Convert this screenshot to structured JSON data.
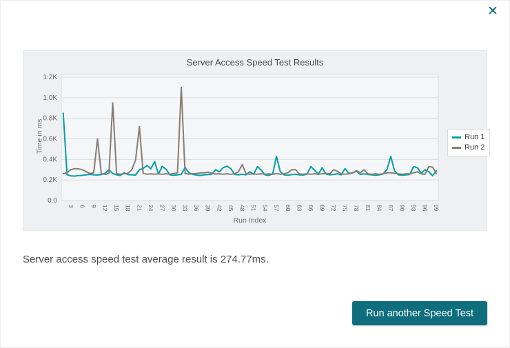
{
  "dialog": {
    "close_icon": "✕",
    "summary_text": "Server access speed test average result is 274.77ms.",
    "run_button_label": "Run another Speed Test"
  },
  "colors": {
    "accent_teal": "#00a0a4",
    "series_gray": "#857d76",
    "button_bg": "#0e6e7e",
    "panel_bg": "#eef0f1",
    "plot_bg": "#f5f6f7",
    "grid": "#d9dcde",
    "tick_text": "#666666",
    "title_text": "#4a4a4a"
  },
  "chart_data": {
    "type": "line",
    "title": "Server Access Speed Test Results",
    "xlabel": "Run Index",
    "ylabel": "Time in ms",
    "ylim": [
      0,
      1200
    ],
    "grid": true,
    "legend_position": "right",
    "y_ticks": [
      "0.0",
      "0.2K",
      "0.4K",
      "0.6K",
      "0.8K",
      "1.0K",
      "1.2K"
    ],
    "x_ticks": [
      3,
      6,
      9,
      12,
      15,
      18,
      21,
      24,
      27,
      30,
      33,
      36,
      39,
      42,
      45,
      48,
      51,
      54,
      57,
      60,
      63,
      66,
      69,
      72,
      75,
      78,
      81,
      84,
      87,
      90,
      93,
      96,
      99
    ],
    "x_range": [
      1,
      99
    ],
    "series": [
      {
        "name": "Run 1",
        "color": "#00a0a4",
        "values": [
          850,
          250,
          240,
          238,
          242,
          245,
          250,
          255,
          250,
          248,
          252,
          265,
          300,
          262,
          250,
          245,
          270,
          252,
          250,
          248,
          300,
          312,
          342,
          308,
          380,
          258,
          332,
          305,
          250,
          246,
          250,
          255,
          320,
          270,
          255,
          248,
          245,
          250,
          252,
          255,
          300,
          280,
          320,
          335,
          310,
          255,
          250,
          256,
          250,
          280,
          255,
          330,
          295,
          250,
          245,
          258,
          430,
          280,
          250,
          246,
          252,
          256,
          250,
          248,
          256,
          330,
          295,
          255,
          320,
          258,
          250,
          254,
          260,
          250,
          310,
          265,
          270,
          285,
          255,
          260,
          254,
          250,
          246,
          250,
          258,
          300,
          430,
          290,
          250,
          246,
          250,
          254,
          330,
          320,
          265,
          300,
          280,
          240,
          290
        ]
      },
      {
        "name": "Run 2",
        "color": "#857d76",
        "values": [
          260,
          272,
          300,
          310,
          308,
          300,
          282,
          262,
          270,
          600,
          260,
          255,
          262,
          950,
          262,
          256,
          260,
          265,
          300,
          395,
          720,
          262,
          256,
          260,
          256,
          260,
          256,
          260,
          256,
          262,
          270,
          1100,
          262,
          256,
          260,
          264,
          268,
          270,
          275,
          265,
          258,
          260,
          256,
          260,
          256,
          260,
          280,
          350,
          260,
          256,
          260,
          256,
          260,
          256,
          260,
          256,
          262,
          256,
          260,
          270,
          300,
          300,
          260,
          256,
          260,
          256,
          260,
          256,
          260,
          264,
          260,
          300,
          285,
          260,
          256,
          260,
          268,
          290,
          270,
          300,
          260,
          256,
          260,
          256,
          260,
          270,
          270,
          265,
          260,
          256,
          260,
          260,
          270,
          280,
          260,
          255,
          330,
          325,
          260
        ]
      }
    ]
  }
}
